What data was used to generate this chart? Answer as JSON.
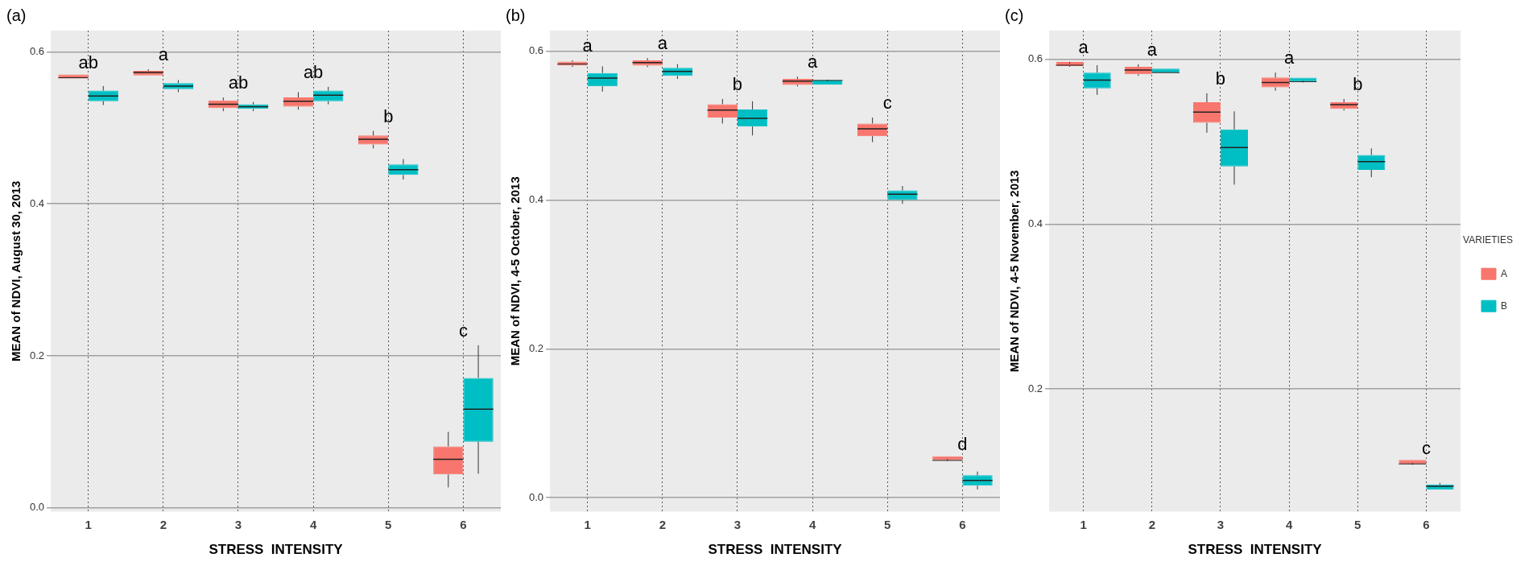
{
  "chart_data": [
    {
      "type": "box",
      "title": "(a)",
      "xlabel": "STRESS  INTENSITY",
      "ylabel": "MEAN of NDVI, August 30, 2013",
      "categories": [
        "1",
        "2",
        "3",
        "4",
        "5",
        "6"
      ],
      "ylim": [
        -0.005,
        0.628
      ],
      "yticks": [
        {
          "value": 0,
          "label": "0.0"
        },
        0.2,
        0.4,
        0.6
      ],
      "grid": true,
      "legend": false,
      "series": [
        {
          "color": "#f8766d",
          "boxes": [
            {
              "low": 0.565,
              "q1": 0.565,
              "median": 0.566,
              "q3": 0.567,
              "high": 0.567
            },
            {
              "low": 0.569,
              "q1": 0.569,
              "median": 0.573,
              "q3": 0.575,
              "high": 0.577
            },
            {
              "low": 0.522,
              "q1": 0.526,
              "median": 0.531,
              "q3": 0.536,
              "high": 0.54
            },
            {
              "low": 0.524,
              "q1": 0.528,
              "median": 0.535,
              "q3": 0.54,
              "high": 0.547
            },
            {
              "low": 0.473,
              "q1": 0.478,
              "median": 0.485,
              "q3": 0.49,
              "high": 0.496
            },
            {
              "low": 0.027,
              "q1": 0.044,
              "median": 0.064,
              "q3": 0.081,
              "high": 0.1
            }
          ]
        },
        {
          "color": "#00bfc4",
          "boxes": [
            {
              "low": 0.53,
              "q1": 0.535,
              "median": 0.542,
              "q3": 0.549,
              "high": 0.555
            },
            {
              "low": 0.547,
              "q1": 0.551,
              "median": 0.555,
              "q3": 0.559,
              "high": 0.563
            },
            {
              "low": 0.522,
              "q1": 0.525,
              "median": 0.528,
              "q3": 0.531,
              "high": 0.534
            },
            {
              "low": 0.531,
              "q1": 0.535,
              "median": 0.543,
              "q3": 0.549,
              "high": 0.554
            },
            {
              "low": 0.432,
              "q1": 0.438,
              "median": 0.445,
              "q3": 0.452,
              "high": 0.459
            },
            {
              "low": 0.045,
              "q1": 0.087,
              "median": 0.13,
              "q3": 0.171,
              "high": 0.214
            }
          ]
        }
      ],
      "annotations": [
        "ab",
        "a",
        "ab",
        "ab",
        "b",
        "c"
      ]
    },
    {
      "type": "box",
      "title": "(b)",
      "xlabel": "STRESS  INTENSITY",
      "ylabel": "MEAN of NDVI, 4-5 October, 2013",
      "categories": [
        "1",
        "2",
        "3",
        "4",
        "5",
        "6"
      ],
      "ylim": [
        -0.019,
        0.628
      ],
      "yticks": [
        {
          "value": 0,
          "label": "0.0"
        },
        0.2,
        0.4,
        0.6
      ],
      "grid": true,
      "legend": false,
      "series": [
        {
          "color": "#f8766d",
          "boxes": [
            {
              "low": 0.579,
              "q1": 0.581,
              "median": 0.583,
              "q3": 0.586,
              "high": 0.588
            },
            {
              "low": 0.579,
              "q1": 0.581,
              "median": 0.585,
              "q3": 0.588,
              "high": 0.591
            },
            {
              "low": 0.503,
              "q1": 0.511,
              "median": 0.521,
              "q3": 0.529,
              "high": 0.536
            },
            {
              "low": 0.553,
              "q1": 0.555,
              "median": 0.56,
              "q3": 0.563,
              "high": 0.566
            },
            {
              "low": 0.478,
              "q1": 0.486,
              "median": 0.496,
              "q3": 0.503,
              "high": 0.511
            },
            {
              "low": 0.049,
              "q1": 0.05,
              "median": 0.05,
              "q3": 0.051,
              "high": 0.052
            }
          ]
        },
        {
          "color": "#00bfc4",
          "boxes": [
            {
              "low": 0.546,
              "q1": 0.553,
              "median": 0.564,
              "q3": 0.571,
              "high": 0.58
            },
            {
              "low": 0.563,
              "q1": 0.567,
              "median": 0.573,
              "q3": 0.578,
              "high": 0.583
            },
            {
              "low": 0.487,
              "q1": 0.499,
              "median": 0.51,
              "q3": 0.522,
              "high": 0.533
            },
            {
              "low": 0.56,
              "q1": 0.561,
              "median": 0.561,
              "q3": 0.561,
              "high": 0.562
            },
            {
              "low": 0.395,
              "q1": 0.4,
              "median": 0.408,
              "q3": 0.413,
              "high": 0.419
            },
            {
              "low": 0.011,
              "q1": 0.016,
              "median": 0.023,
              "q3": 0.03,
              "high": 0.035
            }
          ]
        }
      ],
      "annotations": [
        "a",
        "a",
        "b",
        "a",
        "c",
        "d"
      ]
    },
    {
      "type": "box",
      "title": "(c)",
      "xlabel": "STRESS  INTENSITY",
      "ylabel": "MEAN of NDVI, 4-5 November, 2013",
      "categories": [
        "1",
        "2",
        "3",
        "4",
        "5",
        "6"
      ],
      "ylim": [
        0.051,
        0.635
      ],
      "yticks": [
        0.2,
        0.4,
        0.6
      ],
      "grid": true,
      "legend": "right",
      "legend_title": "VARIETIES",
      "series": [
        {
          "name": "A",
          "color": "#f8766d",
          "boxes": [
            {
              "low": 0.591,
              "q1": 0.592,
              "median": 0.593,
              "q3": 0.595,
              "high": 0.597
            },
            {
              "low": 0.58,
              "q1": 0.582,
              "median": 0.587,
              "q3": 0.591,
              "high": 0.594
            },
            {
              "low": 0.511,
              "q1": 0.523,
              "median": 0.536,
              "q3": 0.548,
              "high": 0.559
            },
            {
              "low": 0.562,
              "q1": 0.566,
              "median": 0.572,
              "q3": 0.578,
              "high": 0.584
            },
            {
              "low": 0.538,
              "q1": 0.54,
              "median": 0.545,
              "q3": 0.548,
              "high": 0.552
            },
            {
              "low": 0.108,
              "q1": 0.109,
              "median": 0.109,
              "q3": 0.109,
              "high": 0.11
            }
          ]
        },
        {
          "name": "B",
          "color": "#00bfc4",
          "boxes": [
            {
              "low": 0.557,
              "q1": 0.565,
              "median": 0.575,
              "q3": 0.584,
              "high": 0.593
            },
            {
              "low": 0.584,
              "q1": 0.584,
              "median": 0.584,
              "q3": 0.585,
              "high": 0.585
            },
            {
              "low": 0.448,
              "q1": 0.47,
              "median": 0.493,
              "q3": 0.515,
              "high": 0.537
            },
            {
              "low": 0.572,
              "q1": 0.573,
              "median": 0.573,
              "q3": 0.573,
              "high": 0.574
            },
            {
              "low": 0.457,
              "q1": 0.466,
              "median": 0.476,
              "q3": 0.484,
              "high": 0.492
            },
            {
              "low": 0.078,
              "q1": 0.078,
              "median": 0.082,
              "q3": 0.084,
              "high": 0.086
            }
          ]
        }
      ],
      "annotations": [
        "a",
        "a",
        "b",
        "a",
        "b",
        "c"
      ]
    }
  ]
}
